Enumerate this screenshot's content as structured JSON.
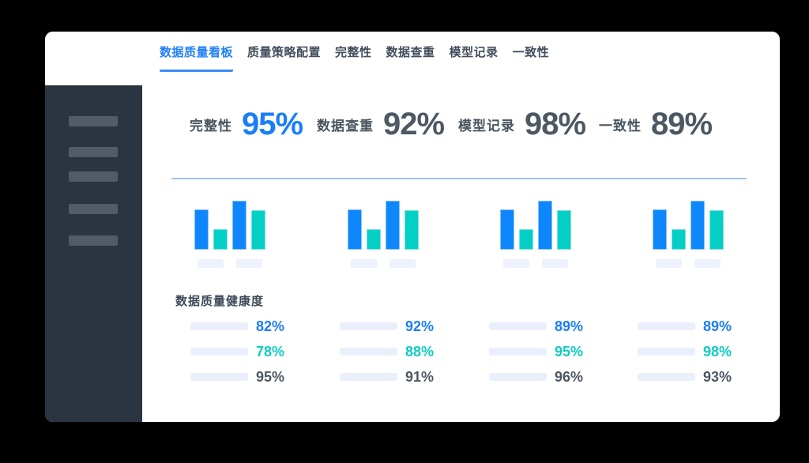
{
  "colors": {
    "accent_blue": "#1b7ef8",
    "teal": "#0fccc3",
    "dark_text": "#4d5863",
    "sidebar_bg": "#2b3441",
    "placeholder": "#edf2fc",
    "divider": "#9fc2e8"
  },
  "tabs": {
    "items": [
      {
        "label": "数据质量看板",
        "active": true
      },
      {
        "label": "质量策略配置",
        "active": false
      },
      {
        "label": "完整性",
        "active": false
      },
      {
        "label": "数据查重",
        "active": false
      },
      {
        "label": "模型记录",
        "active": false
      },
      {
        "label": "一致性",
        "active": false
      }
    ]
  },
  "stats": [
    {
      "label": "完整性",
      "value": "95%",
      "highlight": true
    },
    {
      "label": "数据查重",
      "value": "92%",
      "highlight": false
    },
    {
      "label": "模型记录",
      "value": "98%",
      "highlight": false
    },
    {
      "label": "一致性",
      "value": "89%",
      "highlight": false
    }
  ],
  "mini_charts": {
    "type": "bar",
    "count": 4,
    "bar_colors": [
      "blue",
      "teal",
      "blue",
      "teal"
    ],
    "relative_heights": [
      51,
      26,
      62,
      50
    ],
    "note": "four identical skeleton bar charts with two axis label placeholders each"
  },
  "health": {
    "title": "数据质量健康度",
    "columns": [
      {
        "rows": [
          {
            "value": "82%",
            "color": "blue"
          },
          {
            "value": "78%",
            "color": "teal"
          },
          {
            "value": "95%",
            "color": "dark"
          }
        ]
      },
      {
        "rows": [
          {
            "value": "92%",
            "color": "blue"
          },
          {
            "value": "88%",
            "color": "teal"
          },
          {
            "value": "91%",
            "color": "dark"
          }
        ]
      },
      {
        "rows": [
          {
            "value": "89%",
            "color": "blue"
          },
          {
            "value": "95%",
            "color": "teal"
          },
          {
            "value": "96%",
            "color": "dark"
          }
        ]
      },
      {
        "rows": [
          {
            "value": "89%",
            "color": "blue"
          },
          {
            "value": "98%",
            "color": "teal"
          },
          {
            "value": "93%",
            "color": "dark"
          }
        ]
      }
    ]
  }
}
